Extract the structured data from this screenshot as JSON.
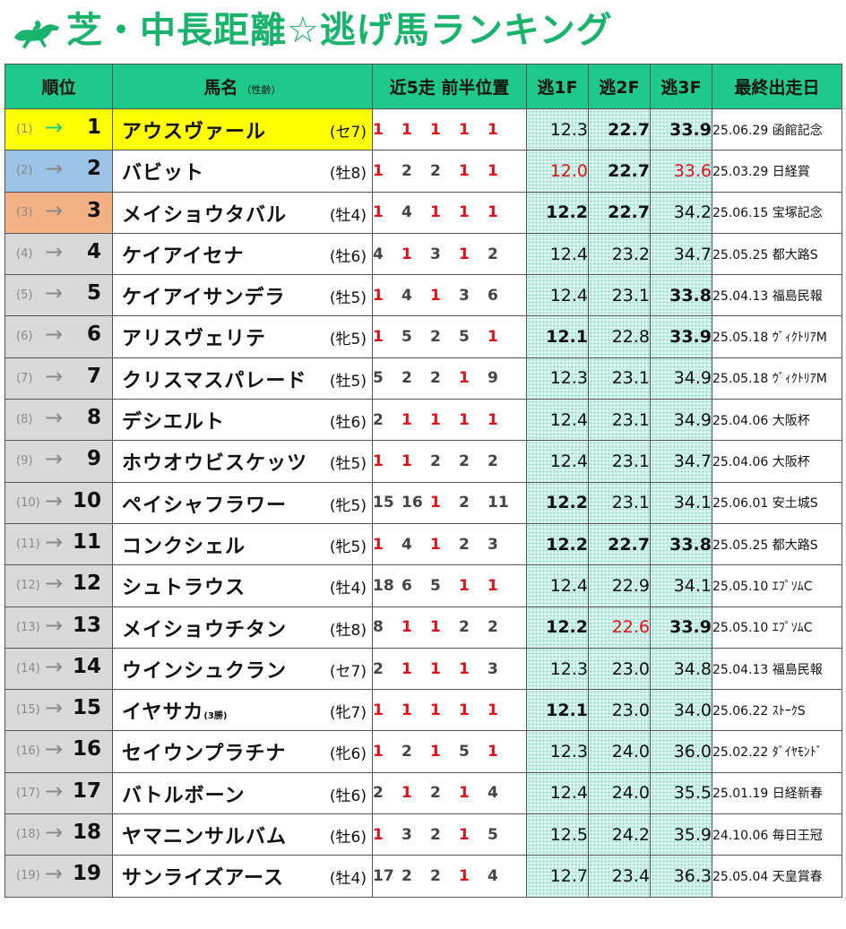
{
  "title": "芝・中長距離☆逃げ馬ランキング",
  "headers": {
    "rank": "順位",
    "name": "馬名",
    "name_sub": "（性齢）",
    "positions": "近5走 前半位置",
    "f1": "逃1F",
    "f2": "逃2F",
    "f3": "逃3F",
    "last_race": "最終出走日"
  },
  "colors": {
    "title_green": "#19b36b",
    "header_green": "#1ec98b",
    "highlight_red": "#e0101a"
  },
  "rows": [
    {
      "prev": "(1)",
      "rank": "1",
      "name": "アウスヴァール",
      "name_note": "",
      "sexage": "(セ7)",
      "pos": [
        {
          "v": "1",
          "red": true
        },
        {
          "v": "1",
          "red": true
        },
        {
          "v": "1",
          "red": true
        },
        {
          "v": "1",
          "red": true
        },
        {
          "v": "1",
          "red": true
        }
      ],
      "f1": "12.3",
      "f1_bold": false,
      "f1_red": false,
      "f2": "22.7",
      "f2_bold": true,
      "f2_red": false,
      "f3": "33.9",
      "f3_bold": true,
      "f3_red": false,
      "race": "25.06.29 函館記念"
    },
    {
      "prev": "(2)",
      "rank": "2",
      "name": "バビット",
      "name_note": "",
      "sexage": "(牡8)",
      "pos": [
        {
          "v": "1",
          "red": true
        },
        {
          "v": "2",
          "red": false
        },
        {
          "v": "2",
          "red": false
        },
        {
          "v": "1",
          "red": true
        },
        {
          "v": "1",
          "red": true
        }
      ],
      "f1": "12.0",
      "f1_bold": false,
      "f1_red": true,
      "f2": "22.7",
      "f2_bold": true,
      "f2_red": false,
      "f3": "33.6",
      "f3_bold": false,
      "f3_red": true,
      "race": "25.03.29 日経賞"
    },
    {
      "prev": "(3)",
      "rank": "3",
      "name": "メイショウタバル",
      "name_note": "",
      "sexage": "(牡4)",
      "pos": [
        {
          "v": "1",
          "red": true
        },
        {
          "v": "4",
          "red": false
        },
        {
          "v": "1",
          "red": true
        },
        {
          "v": "1",
          "red": true
        },
        {
          "v": "1",
          "red": true
        }
      ],
      "f1": "12.2",
      "f1_bold": true,
      "f1_red": false,
      "f2": "22.7",
      "f2_bold": true,
      "f2_red": false,
      "f3": "34.2",
      "f3_bold": false,
      "f3_red": false,
      "race": "25.06.15 宝塚記念"
    },
    {
      "prev": "(4)",
      "rank": "4",
      "name": "ケイアイセナ",
      "name_note": "",
      "sexage": "(牡6)",
      "pos": [
        {
          "v": "4",
          "red": false
        },
        {
          "v": "1",
          "red": true
        },
        {
          "v": "3",
          "red": false
        },
        {
          "v": "1",
          "red": true
        },
        {
          "v": "2",
          "red": false
        }
      ],
      "f1": "12.4",
      "f1_bold": false,
      "f1_red": false,
      "f2": "23.2",
      "f2_bold": false,
      "f2_red": false,
      "f3": "34.7",
      "f3_bold": false,
      "f3_red": false,
      "race": "25.05.25 都大路S"
    },
    {
      "prev": "(5)",
      "rank": "5",
      "name": "ケイアイサンデラ",
      "name_note": "",
      "sexage": "(牡5)",
      "pos": [
        {
          "v": "1",
          "red": true
        },
        {
          "v": "4",
          "red": false
        },
        {
          "v": "1",
          "red": true
        },
        {
          "v": "3",
          "red": false
        },
        {
          "v": "6",
          "red": false
        }
      ],
      "f1": "12.4",
      "f1_bold": false,
      "f1_red": false,
      "f2": "23.1",
      "f2_bold": false,
      "f2_red": false,
      "f3": "33.8",
      "f3_bold": true,
      "f3_red": false,
      "race": "25.04.13 福島民報"
    },
    {
      "prev": "(6)",
      "rank": "6",
      "name": "アリスヴェリテ",
      "name_note": "",
      "sexage": "(牝5)",
      "pos": [
        {
          "v": "1",
          "red": true
        },
        {
          "v": "5",
          "red": false
        },
        {
          "v": "2",
          "red": false
        },
        {
          "v": "5",
          "red": false
        },
        {
          "v": "1",
          "red": true
        }
      ],
      "f1": "12.1",
      "f1_bold": true,
      "f1_red": false,
      "f2": "22.8",
      "f2_bold": false,
      "f2_red": false,
      "f3": "33.9",
      "f3_bold": true,
      "f3_red": false,
      "race": "25.05.18 ｳﾞｨｸﾄﾘｱM"
    },
    {
      "prev": "(7)",
      "rank": "7",
      "name": "クリスマスパレード",
      "name_note": "",
      "sexage": "(牡5)",
      "pos": [
        {
          "v": "5",
          "red": false
        },
        {
          "v": "2",
          "red": false
        },
        {
          "v": "2",
          "red": false
        },
        {
          "v": "1",
          "red": true
        },
        {
          "v": "9",
          "red": false
        }
      ],
      "f1": "12.3",
      "f1_bold": false,
      "f1_red": false,
      "f2": "23.1",
      "f2_bold": false,
      "f2_red": false,
      "f3": "34.9",
      "f3_bold": false,
      "f3_red": false,
      "race": "25.05.18 ｳﾞｨｸﾄﾘｱM"
    },
    {
      "prev": "(8)",
      "rank": "8",
      "name": "デシエルト",
      "name_note": "",
      "sexage": "(牡6)",
      "pos": [
        {
          "v": "2",
          "red": false
        },
        {
          "v": "1",
          "red": true
        },
        {
          "v": "1",
          "red": true
        },
        {
          "v": "1",
          "red": true
        },
        {
          "v": "1",
          "red": true
        }
      ],
      "f1": "12.4",
      "f1_bold": false,
      "f1_red": false,
      "f2": "23.1",
      "f2_bold": false,
      "f2_red": false,
      "f3": "34.9",
      "f3_bold": false,
      "f3_red": false,
      "race": "25.04.06 大阪杯"
    },
    {
      "prev": "(9)",
      "rank": "9",
      "name": "ホウオウビスケッツ",
      "name_note": "",
      "sexage": "(牡5)",
      "pos": [
        {
          "v": "1",
          "red": true
        },
        {
          "v": "1",
          "red": true
        },
        {
          "v": "2",
          "red": false
        },
        {
          "v": "2",
          "red": false
        },
        {
          "v": "2",
          "red": false
        }
      ],
      "f1": "12.4",
      "f1_bold": false,
      "f1_red": false,
      "f2": "23.1",
      "f2_bold": false,
      "f2_red": false,
      "f3": "34.7",
      "f3_bold": false,
      "f3_red": false,
      "race": "25.04.06 大阪杯"
    },
    {
      "prev": "(10)",
      "rank": "10",
      "name": "ペイシャフラワー",
      "name_note": "",
      "sexage": "(牝5)",
      "pos": [
        {
          "v": "15",
          "red": false
        },
        {
          "v": "16",
          "red": false
        },
        {
          "v": "1",
          "red": true
        },
        {
          "v": "2",
          "red": false
        },
        {
          "v": "11",
          "red": false
        }
      ],
      "f1": "12.2",
      "f1_bold": true,
      "f1_red": false,
      "f2": "23.1",
      "f2_bold": false,
      "f2_red": false,
      "f3": "34.1",
      "f3_bold": false,
      "f3_red": false,
      "race": "25.06.01 安土城S"
    },
    {
      "prev": "(11)",
      "rank": "11",
      "name": "コンクシェル",
      "name_note": "",
      "sexage": "(牝5)",
      "pos": [
        {
          "v": "1",
          "red": true
        },
        {
          "v": "4",
          "red": false
        },
        {
          "v": "1",
          "red": true
        },
        {
          "v": "2",
          "red": false
        },
        {
          "v": "3",
          "red": false
        }
      ],
      "f1": "12.2",
      "f1_bold": true,
      "f1_red": false,
      "f2": "22.7",
      "f2_bold": true,
      "f2_red": false,
      "f3": "33.8",
      "f3_bold": true,
      "f3_red": false,
      "race": "25.05.25 都大路S"
    },
    {
      "prev": "(12)",
      "rank": "12",
      "name": "シュトラウス",
      "name_note": "",
      "sexage": "(牡4)",
      "pos": [
        {
          "v": "18",
          "red": false
        },
        {
          "v": "6",
          "red": false
        },
        {
          "v": "5",
          "red": false
        },
        {
          "v": "1",
          "red": true
        },
        {
          "v": "1",
          "red": true
        }
      ],
      "f1": "12.4",
      "f1_bold": false,
      "f1_red": false,
      "f2": "22.9",
      "f2_bold": false,
      "f2_red": false,
      "f3": "34.1",
      "f3_bold": false,
      "f3_red": false,
      "race": "25.05.10 ｴﾌﾟｿﾑC"
    },
    {
      "prev": "(13)",
      "rank": "13",
      "name": "メイショウチタン",
      "name_note": "",
      "sexage": "(牡8)",
      "pos": [
        {
          "v": "8",
          "red": false
        },
        {
          "v": "1",
          "red": true
        },
        {
          "v": "1",
          "red": true
        },
        {
          "v": "2",
          "red": false
        },
        {
          "v": "2",
          "red": false
        }
      ],
      "f1": "12.2",
      "f1_bold": true,
      "f1_red": false,
      "f2": "22.6",
      "f2_bold": false,
      "f2_red": true,
      "f3": "33.9",
      "f3_bold": true,
      "f3_red": false,
      "race": "25.05.10 ｴﾌﾟｿﾑC"
    },
    {
      "prev": "(14)",
      "rank": "14",
      "name": "ウインシュクラン",
      "name_note": "",
      "sexage": "(セ7)",
      "pos": [
        {
          "v": "2",
          "red": false
        },
        {
          "v": "1",
          "red": true
        },
        {
          "v": "1",
          "red": true
        },
        {
          "v": "1",
          "red": true
        },
        {
          "v": "3",
          "red": false
        }
      ],
      "f1": "12.3",
      "f1_bold": false,
      "f1_red": false,
      "f2": "23.0",
      "f2_bold": false,
      "f2_red": false,
      "f3": "34.8",
      "f3_bold": false,
      "f3_red": false,
      "race": "25.04.13 福島民報"
    },
    {
      "prev": "(15)",
      "rank": "15",
      "name": "イヤサカ",
      "name_note": "(3勝)",
      "sexage": "(牝7)",
      "pos": [
        {
          "v": "1",
          "red": true
        },
        {
          "v": "1",
          "red": true
        },
        {
          "v": "1",
          "red": true
        },
        {
          "v": "1",
          "red": true
        },
        {
          "v": "1",
          "red": true
        }
      ],
      "f1": "12.1",
      "f1_bold": true,
      "f1_red": false,
      "f2": "23.0",
      "f2_bold": false,
      "f2_red": false,
      "f3": "34.0",
      "f3_bold": false,
      "f3_red": false,
      "race": "25.06.22 ｽﾄｰｸS"
    },
    {
      "prev": "(16)",
      "rank": "16",
      "name": "セイウンプラチナ",
      "name_note": "",
      "sexage": "(牝6)",
      "pos": [
        {
          "v": "1",
          "red": true
        },
        {
          "v": "2",
          "red": false
        },
        {
          "v": "1",
          "red": true
        },
        {
          "v": "5",
          "red": false
        },
        {
          "v": "1",
          "red": true
        }
      ],
      "f1": "12.3",
      "f1_bold": false,
      "f1_red": false,
      "f2": "24.0",
      "f2_bold": false,
      "f2_red": false,
      "f3": "36.0",
      "f3_bold": false,
      "f3_red": false,
      "race": "25.02.22 ﾀﾞｲﾔﾓﾝﾄﾞ"
    },
    {
      "prev": "(17)",
      "rank": "17",
      "name": "バトルボーン",
      "name_note": "",
      "sexage": "(牡6)",
      "pos": [
        {
          "v": "2",
          "red": false
        },
        {
          "v": "1",
          "red": true
        },
        {
          "v": "2",
          "red": false
        },
        {
          "v": "1",
          "red": true
        },
        {
          "v": "4",
          "red": false
        }
      ],
      "f1": "12.4",
      "f1_bold": false,
      "f1_red": false,
      "f2": "24.0",
      "f2_bold": false,
      "f2_red": false,
      "f3": "35.5",
      "f3_bold": false,
      "f3_red": false,
      "race": "25.01.19 日経新春"
    },
    {
      "prev": "(18)",
      "rank": "18",
      "name": "ヤマニンサルバム",
      "name_note": "",
      "sexage": "(牡6)",
      "pos": [
        {
          "v": "1",
          "red": true
        },
        {
          "v": "3",
          "red": false
        },
        {
          "v": "2",
          "red": false
        },
        {
          "v": "1",
          "red": true
        },
        {
          "v": "5",
          "red": false
        }
      ],
      "f1": "12.5",
      "f1_bold": false,
      "f1_red": false,
      "f2": "24.2",
      "f2_bold": false,
      "f2_red": false,
      "f3": "35.9",
      "f3_bold": false,
      "f3_red": false,
      "race": "24.10.06 毎日王冠"
    },
    {
      "prev": "(19)",
      "rank": "19",
      "name": "サンライズアース",
      "name_note": "",
      "sexage": "(牡4)",
      "pos": [
        {
          "v": "17",
          "red": false
        },
        {
          "v": "2",
          "red": false
        },
        {
          "v": "2",
          "red": false
        },
        {
          "v": "1",
          "red": true
        },
        {
          "v": "4",
          "red": false
        }
      ],
      "f1": "12.7",
      "f1_bold": false,
      "f1_red": false,
      "f2": "23.4",
      "f2_bold": false,
      "f2_red": false,
      "f3": "36.3",
      "f3_bold": false,
      "f3_red": false,
      "race": "25.05.04 天皇賞春"
    }
  ]
}
